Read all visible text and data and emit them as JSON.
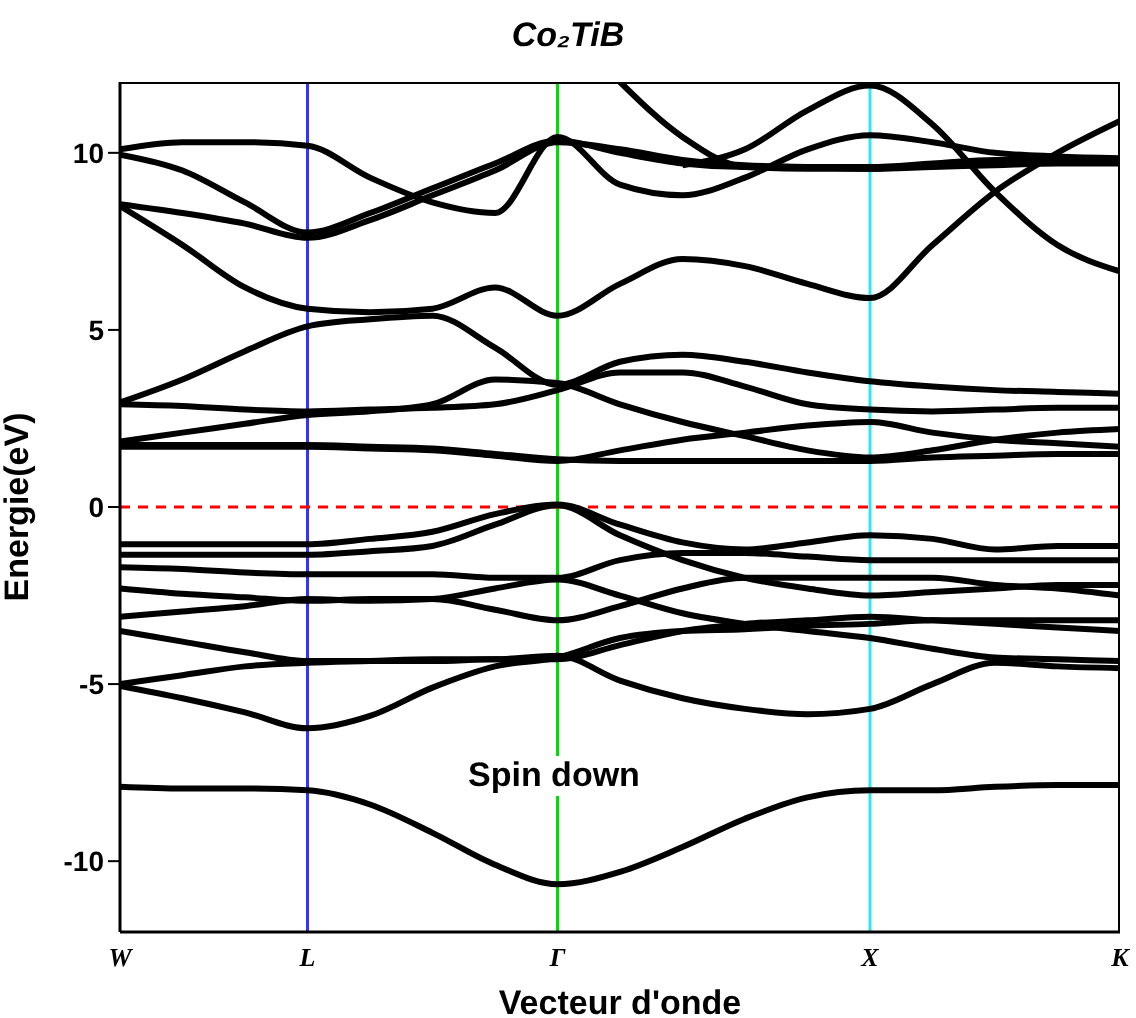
{
  "chart_data": {
    "type": "line",
    "title": "Co₂TiB",
    "xlabel": "Vecteur d'onde",
    "ylabel": "Energie(eV)",
    "annotations": [
      "Spin down"
    ],
    "categories": [
      "W",
      null,
      null,
      "L",
      null,
      null,
      null,
      "Γ",
      null,
      null,
      null,
      null,
      "X",
      null,
      null,
      null,
      "K"
    ],
    "ylim": [
      -12,
      12
    ],
    "yticks": [
      -10,
      -5,
      0,
      5,
      10
    ],
    "series": [
      {
        "color": "#000000",
        "values": [
          10.1,
          10.3,
          10.3,
          10.2,
          9.3,
          8.6,
          8.3,
          10.45,
          9.1,
          8.8,
          9.3,
          10.1,
          10.5,
          10.3,
          10.0,
          9.9,
          9.85
        ]
      },
      {
        "color": "#000000",
        "values": [
          9.95,
          9.5,
          8.6,
          7.75,
          8.3,
          9.0,
          9.7,
          10.35,
          10.0,
          9.7,
          9.6,
          9.6,
          9.6,
          9.7,
          9.8,
          9.8,
          9.8
        ]
      },
      {
        "color": "#000000",
        "values": [
          8.55,
          8.3,
          8.0,
          7.6,
          8.1,
          8.8,
          9.5,
          10.3,
          10.1,
          9.8,
          9.65,
          9.6,
          9.55,
          9.65,
          9.75,
          9.75,
          9.75
        ]
      },
      {
        "color": "#000000",
        "values": [
          null,
          null,
          null,
          null,
          null,
          null,
          null,
          null,
          12,
          10.45,
          9.6,
          9.55,
          9.55,
          9.6,
          9.65,
          9.7,
          9.7
        ]
      },
      {
        "color": "#000000",
        "values": [
          null,
          null,
          null,
          null,
          null,
          null,
          null,
          null,
          null,
          9.65,
          10.1,
          11.2,
          11.9,
          10.8,
          8.9,
          7.4,
          6.65
        ]
      },
      {
        "color": "#000000",
        "values": [
          8.5,
          7.4,
          6.2,
          5.6,
          5.5,
          5.6,
          6.2,
          5.4,
          6.3,
          7.0,
          6.8,
          6.3,
          5.9,
          7.4,
          8.9,
          10.0,
          10.9
        ]
      },
      {
        "color": "#000000",
        "values": [
          2.95,
          3.6,
          4.4,
          5.1,
          5.3,
          5.4,
          4.5,
          3.45,
          4.1,
          4.3,
          4.1,
          3.8,
          3.55,
          3.4,
          3.3,
          3.25,
          3.2
        ]
      },
      {
        "color": "#000000",
        "values": [
          2.9,
          2.85,
          2.75,
          2.7,
          2.75,
          2.8,
          2.9,
          3.3,
          3.8,
          3.8,
          3.4,
          2.9,
          2.75,
          2.7,
          2.75,
          2.8,
          2.8
        ]
      },
      {
        "color": "#000000",
        "values": [
          1.85,
          2.1,
          2.35,
          2.6,
          2.7,
          2.9,
          3.6,
          3.5,
          2.9,
          2.4,
          2.0,
          1.6,
          1.4,
          1.6,
          1.9,
          2.1,
          2.2
        ]
      },
      {
        "color": "#000000",
        "values": [
          1.7,
          1.7,
          1.7,
          1.7,
          1.65,
          1.6,
          1.45,
          1.3,
          1.6,
          1.9,
          2.1,
          2.3,
          2.4,
          2.1,
          1.9,
          1.8,
          1.7
        ]
      },
      {
        "color": "#000000",
        "values": [
          1.75,
          1.75,
          1.75,
          1.75,
          1.7,
          1.65,
          1.5,
          1.35,
          1.3,
          1.3,
          1.3,
          1.3,
          1.3,
          1.4,
          1.45,
          1.5,
          1.5
        ]
      },
      {
        "color": "#000000",
        "values": [
          -1.05,
          -1.05,
          -1.05,
          -1.05,
          -0.9,
          -0.7,
          -0.2,
          0.07,
          -0.5,
          -1.0,
          -1.2,
          -1.0,
          -0.8,
          -0.9,
          -1.2,
          -1.1,
          -1.1
        ]
      },
      {
        "color": "#000000",
        "values": [
          -1.35,
          -1.35,
          -1.35,
          -1.35,
          -1.25,
          -1.1,
          -0.5,
          0.05,
          -0.8,
          -1.5,
          -2.0,
          -2.3,
          -2.5,
          -2.4,
          -2.3,
          -2.2,
          -2.2
        ]
      },
      {
        "color": "#000000",
        "values": [
          -1.7,
          -1.75,
          -1.85,
          -1.9,
          -1.9,
          -1.9,
          -2.0,
          -2.0,
          -1.5,
          -1.3,
          -1.3,
          -1.4,
          -1.5,
          -1.5,
          -1.5,
          -1.5,
          -1.5
        ]
      },
      {
        "color": "#000000",
        "values": [
          -2.3,
          -2.45,
          -2.55,
          -2.65,
          -2.6,
          -2.6,
          -2.9,
          -3.2,
          -2.8,
          -2.3,
          -2.0,
          -2.0,
          -2.0,
          -2.0,
          -2.2,
          -2.3,
          -2.5
        ]
      },
      {
        "color": "#000000",
        "values": [
          -3.1,
          -2.95,
          -2.8,
          -2.6,
          -2.65,
          -2.6,
          -2.3,
          -2.05,
          -2.5,
          -3.0,
          -3.3,
          -3.5,
          -3.7,
          -4.0,
          -4.25,
          -4.3,
          -4.35
        ]
      },
      {
        "color": "#000000",
        "values": [
          -3.5,
          -3.8,
          -4.1,
          -4.35,
          -4.35,
          -4.35,
          -4.3,
          -4.3,
          -3.9,
          -3.5,
          -3.3,
          -3.2,
          -3.1,
          -3.2,
          -3.3,
          -3.4,
          -3.5
        ]
      },
      {
        "color": "#000000",
        "values": [
          -5.0,
          -4.75,
          -4.5,
          -4.4,
          -4.35,
          -4.3,
          -4.3,
          -4.2,
          -4.9,
          -5.4,
          -5.7,
          -5.85,
          -5.7,
          -5.0,
          -4.4,
          -4.5,
          -4.55
        ]
      },
      {
        "color": "#000000",
        "values": [
          -5.05,
          -5.4,
          -5.8,
          -6.25,
          -5.9,
          -5.1,
          -4.5,
          -4.25,
          -3.7,
          -3.5,
          -3.45,
          -3.35,
          -3.3,
          -3.2,
          -3.2,
          -3.2,
          -3.2
        ]
      },
      {
        "color": "#000000",
        "values": [
          -7.9,
          -7.95,
          -7.95,
          -8.0,
          -8.4,
          -9.2,
          -10.1,
          -10.65,
          -10.3,
          -9.6,
          -8.8,
          -8.2,
          -8.0,
          -8.0,
          -7.9,
          -7.85,
          -7.85
        ]
      }
    ],
    "ref_lines": [
      {
        "axis": "x",
        "value": "L",
        "color": "#3333ff"
      },
      {
        "axis": "x",
        "value": "Γ",
        "color": "#00dd00"
      },
      {
        "axis": "x",
        "value": "X",
        "color": "#33e5ee"
      },
      {
        "axis": "y",
        "value": 0,
        "color": "#ff0000",
        "line_style": "dashed"
      }
    ]
  }
}
